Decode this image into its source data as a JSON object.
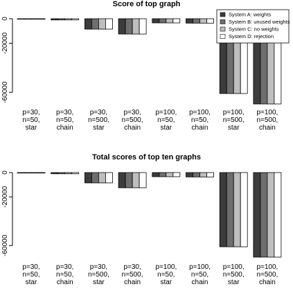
{
  "chart_data": [
    {
      "type": "bar",
      "title": "Score of top graph",
      "xlabel": "",
      "ylabel": "",
      "ylim": [
        -75000,
        0
      ],
      "yticks": [
        0,
        -20000,
        -60000
      ],
      "categories": [
        [
          "p=30,",
          "n=50,",
          "star"
        ],
        [
          "p=30,",
          "n=50,",
          "chain"
        ],
        [
          "p=30,",
          "n=500,",
          "star"
        ],
        [
          "p=30,",
          "n=500,",
          "chain"
        ],
        [
          "p=100,",
          "n=50,",
          "star"
        ],
        [
          "p=100,",
          "n=50,",
          "chain"
        ],
        [
          "p=100,",
          "n=500,",
          "star"
        ],
        [
          "p=100,",
          "n=500,",
          "chain"
        ]
      ],
      "legend_position": "top-right",
      "series": [
        {
          "name": "System A: weights",
          "color": "#3c3c3c",
          "values": [
            -400,
            -1000,
            -8500,
            -12500,
            -3400,
            -3600,
            -61000,
            -69500
          ]
        },
        {
          "name": "System B: unused weights",
          "color": "#6e6e6e",
          "values": [
            -400,
            -1000,
            -8500,
            -12500,
            -3400,
            -3600,
            -61000,
            -69500
          ]
        },
        {
          "name": "System C: no weights",
          "color": "#bebebe",
          "values": [
            -400,
            -1000,
            -8500,
            -12500,
            -3400,
            -3600,
            -61000,
            -69500
          ]
        },
        {
          "name": "System D: rejection",
          "color": "#ffffff",
          "values": [
            -400,
            -1000,
            -8500,
            -12500,
            -3400,
            -3600,
            -61000,
            -69500
          ]
        }
      ]
    },
    {
      "type": "bar",
      "title": "Total scores of top ten graphs",
      "xlabel": "",
      "ylabel": "",
      "ylim": [
        -75000,
        0
      ],
      "yticks": [
        0,
        -20000,
        -60000
      ],
      "categories": [
        [
          "p=30,",
          "n=50,",
          "star"
        ],
        [
          "p=30,",
          "n=50,",
          "chain"
        ],
        [
          "p=30,",
          "n=500,",
          "star"
        ],
        [
          "p=30,",
          "n=500,",
          "chain"
        ],
        [
          "p=100,",
          "n=50,",
          "star"
        ],
        [
          "p=100,",
          "n=50,",
          "chain"
        ],
        [
          "p=100,",
          "n=500,",
          "star"
        ],
        [
          "p=100,",
          "n=500,",
          "chain"
        ]
      ],
      "series": [
        {
          "color": "#3c3c3c",
          "values": [
            -400,
            -1000,
            -8500,
            -12500,
            -3400,
            -3600,
            -61000,
            -69500
          ]
        },
        {
          "color": "#6e6e6e",
          "values": [
            -400,
            -1000,
            -8500,
            -12500,
            -3400,
            -3600,
            -61000,
            -69500
          ]
        },
        {
          "color": "#bebebe",
          "values": [
            -400,
            -1000,
            -8500,
            -12500,
            -3400,
            -3600,
            -61000,
            -69500
          ]
        },
        {
          "color": "#ffffff",
          "values": [
            -400,
            -1000,
            -8500,
            -12500,
            -3400,
            -3600,
            -61000,
            -69500
          ]
        }
      ]
    }
  ]
}
